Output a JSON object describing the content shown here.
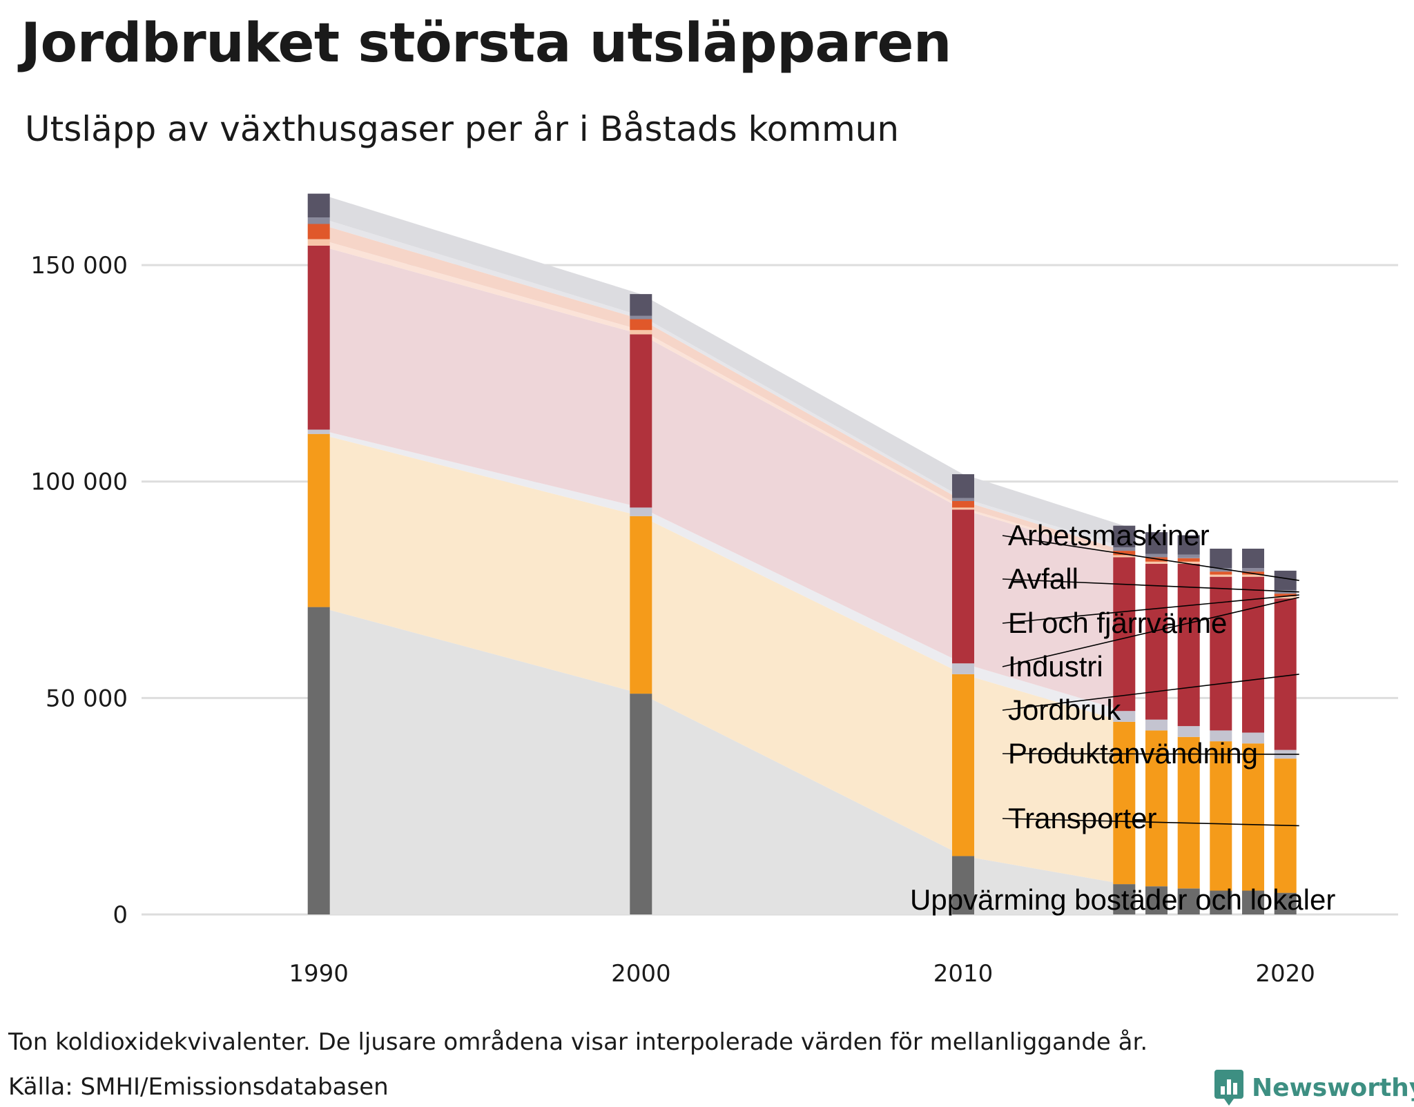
{
  "header": {
    "title": "Jordbruket största utsläpparen",
    "subtitle": "Utsläpp av växthusgaser per år i Båstads kommun"
  },
  "footer": {
    "note": "Ton koldioxidekvivalenter. De ljusare områdena visar interpolerade värden för mellanliggande år.",
    "source": "Källa: SMHI/Emissionsdatabasen",
    "brand": "Newsworthy",
    "brand_color": "#3d8f82"
  },
  "chart_data": {
    "type": "bar",
    "stacked": true,
    "title": "Jordbruket största utsläpparen",
    "subtitle": "Utsläpp av växthusgaser per år i Båstads kommun",
    "unit": "Ton koldioxidekvivalenter",
    "x": [
      1990,
      2000,
      2010,
      2015,
      2016,
      2017,
      2018,
      2019,
      2020
    ],
    "xticks": [
      1990,
      2000,
      2010,
      2020
    ],
    "xtick_labels": [
      "1990",
      "2000",
      "2010",
      "2020"
    ],
    "xlim": [
      1984.5,
      2023.5
    ],
    "ylim": [
      0,
      165000
    ],
    "yticks": [
      0,
      50000,
      100000,
      150000
    ],
    "ytick_labels": [
      "0",
      "50 000",
      "100 000",
      "150 000"
    ],
    "grid": "horizontal",
    "interpolated_area_between": [
      1990,
      2015
    ],
    "series": [
      {
        "name": "Uppvärming bostäder och lokaler",
        "color": "#6b6b6b",
        "area_color": "#e2e2e2",
        "values": [
          71000,
          51000,
          13500,
          7000,
          6500,
          6000,
          5500,
          5500,
          5000
        ]
      },
      {
        "name": "Transporter",
        "color": "#f59b1a",
        "area_color": "#fbe8cc",
        "values": [
          40000,
          41000,
          42000,
          37500,
          36000,
          35000,
          34500,
          34000,
          31000
        ]
      },
      {
        "name": "Produktanvändning",
        "color": "#c4c4d0",
        "area_color": "#ececf0",
        "values": [
          1000,
          2000,
          2500,
          2500,
          2500,
          2500,
          2500,
          2500,
          2000
        ]
      },
      {
        "name": "Jordbruk",
        "color": "#b0323c",
        "area_color": "#eed6d9",
        "values": [
          42500,
          40000,
          35500,
          35500,
          36000,
          37500,
          35500,
          36000,
          35000
        ]
      },
      {
        "name": "Industri",
        "color": "#f7c6a8",
        "area_color": "#fbe3d8",
        "values": [
          1500,
          1000,
          500,
          500,
          500,
          500,
          500,
          500,
          500
        ]
      },
      {
        "name": "El och fjärrvärme",
        "color": "#e0582a",
        "area_color": "#f6d5c8",
        "values": [
          3500,
          2500,
          1500,
          1000,
          1000,
          800,
          700,
          700,
          600
        ]
      },
      {
        "name": "Avfall",
        "color": "#8a8a9c",
        "area_color": "#e6e6ea",
        "values": [
          1500,
          800,
          700,
          800,
          800,
          800,
          800,
          800,
          800
        ]
      },
      {
        "name": "Arbetsmaskiner",
        "color": "#585466",
        "area_color": "#dcdce0",
        "values": [
          5500,
          5000,
          5500,
          5000,
          5000,
          4500,
          4500,
          4500,
          4500
        ]
      }
    ],
    "legend_placement": "right, labels at end of bars"
  }
}
